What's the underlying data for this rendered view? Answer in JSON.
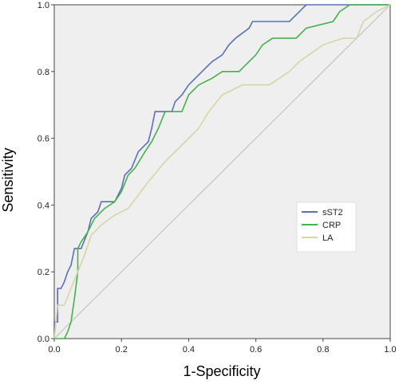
{
  "chart_data": {
    "type": "line",
    "title": "",
    "xlabel": "1-Specificity",
    "ylabel": "Sensitivity",
    "xlim": [
      0,
      1
    ],
    "ylim": [
      0,
      1
    ],
    "x_ticks": [
      "0.0",
      "0.2",
      "0.4",
      "0.6",
      "0.8",
      "1.0"
    ],
    "y_ticks": [
      "0.0",
      "0.2",
      "0.4",
      "0.6",
      "0.8",
      "1.0"
    ],
    "grid": false,
    "plot_background": "#efefef",
    "legend_position": "right",
    "series": [
      {
        "name": "sST2",
        "color": "#5b6fb8",
        "points": [
          [
            0,
            0
          ],
          [
            0,
            0.05
          ],
          [
            0.01,
            0.05
          ],
          [
            0.01,
            0.15
          ],
          [
            0.02,
            0.15
          ],
          [
            0.03,
            0.17
          ],
          [
            0.04,
            0.2
          ],
          [
            0.05,
            0.22
          ],
          [
            0.06,
            0.27
          ],
          [
            0.08,
            0.27
          ],
          [
            0.1,
            0.32
          ],
          [
            0.11,
            0.36
          ],
          [
            0.13,
            0.38
          ],
          [
            0.14,
            0.41
          ],
          [
            0.18,
            0.41
          ],
          [
            0.2,
            0.45
          ],
          [
            0.21,
            0.49
          ],
          [
            0.23,
            0.51
          ],
          [
            0.25,
            0.56
          ],
          [
            0.28,
            0.59
          ],
          [
            0.29,
            0.63
          ],
          [
            0.3,
            0.68
          ],
          [
            0.35,
            0.68
          ],
          [
            0.36,
            0.71
          ],
          [
            0.38,
            0.73
          ],
          [
            0.4,
            0.76
          ],
          [
            0.42,
            0.78
          ],
          [
            0.44,
            0.8
          ],
          [
            0.47,
            0.83
          ],
          [
            0.5,
            0.85
          ],
          [
            0.52,
            0.88
          ],
          [
            0.54,
            0.9
          ],
          [
            0.58,
            0.93
          ],
          [
            0.59,
            0.95
          ],
          [
            0.7,
            0.95
          ],
          [
            0.73,
            0.98
          ],
          [
            0.75,
            1.0
          ],
          [
            1.0,
            1.0
          ]
        ]
      },
      {
        "name": "CRP",
        "color": "#44b24a",
        "points": [
          [
            0,
            0
          ],
          [
            0.03,
            0
          ],
          [
            0.04,
            0.02
          ],
          [
            0.05,
            0.05
          ],
          [
            0.06,
            0.12
          ],
          [
            0.07,
            0.2
          ],
          [
            0.07,
            0.27
          ],
          [
            0.08,
            0.29
          ],
          [
            0.1,
            0.32
          ],
          [
            0.12,
            0.36
          ],
          [
            0.15,
            0.39
          ],
          [
            0.18,
            0.41
          ],
          [
            0.2,
            0.44
          ],
          [
            0.22,
            0.49
          ],
          [
            0.24,
            0.51
          ],
          [
            0.27,
            0.56
          ],
          [
            0.29,
            0.59
          ],
          [
            0.31,
            0.63
          ],
          [
            0.33,
            0.68
          ],
          [
            0.38,
            0.68
          ],
          [
            0.4,
            0.73
          ],
          [
            0.43,
            0.76
          ],
          [
            0.47,
            0.78
          ],
          [
            0.5,
            0.8
          ],
          [
            0.55,
            0.8
          ],
          [
            0.58,
            0.83
          ],
          [
            0.6,
            0.85
          ],
          [
            0.62,
            0.88
          ],
          [
            0.65,
            0.9
          ],
          [
            0.72,
            0.9
          ],
          [
            0.75,
            0.93
          ],
          [
            0.83,
            0.95
          ],
          [
            0.85,
            0.98
          ],
          [
            0.88,
            1.0
          ],
          [
            1.0,
            1.0
          ]
        ]
      },
      {
        "name": "LA",
        "color": "#d8d4a6",
        "points": [
          [
            0,
            0
          ],
          [
            0.01,
            0.1
          ],
          [
            0.03,
            0.1
          ],
          [
            0.05,
            0.15
          ],
          [
            0.07,
            0.2
          ],
          [
            0.09,
            0.25
          ],
          [
            0.11,
            0.31
          ],
          [
            0.14,
            0.34
          ],
          [
            0.18,
            0.37
          ],
          [
            0.22,
            0.39
          ],
          [
            0.28,
            0.47
          ],
          [
            0.33,
            0.53
          ],
          [
            0.38,
            0.58
          ],
          [
            0.43,
            0.63
          ],
          [
            0.46,
            0.68
          ],
          [
            0.5,
            0.73
          ],
          [
            0.56,
            0.76
          ],
          [
            0.64,
            0.76
          ],
          [
            0.7,
            0.8
          ],
          [
            0.73,
            0.83
          ],
          [
            0.8,
            0.88
          ],
          [
            0.86,
            0.9
          ],
          [
            0.9,
            0.9
          ],
          [
            0.92,
            0.95
          ],
          [
            0.96,
            0.98
          ],
          [
            1.0,
            1.0
          ]
        ]
      }
    ]
  }
}
